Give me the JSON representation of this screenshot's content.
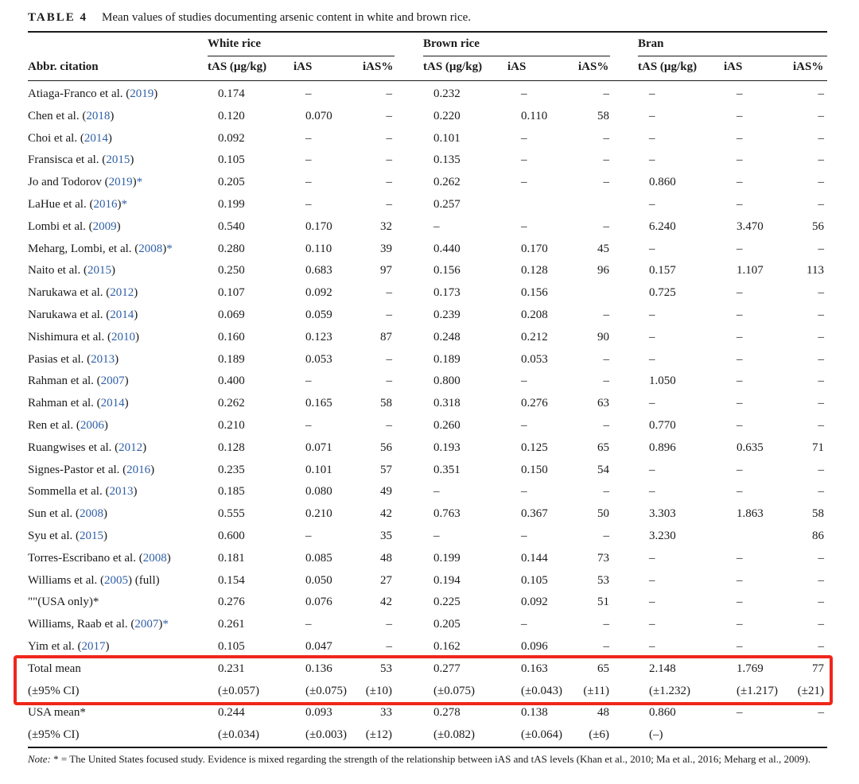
{
  "caption": {
    "label": "TABLE 4",
    "text": "Mean values of studies documenting arsenic content in white and brown rice."
  },
  "groups": [
    "White rice",
    "Brown rice",
    "Bran"
  ],
  "columns": [
    "Abbr. citation",
    "tAS (µg/kg)",
    "iAS",
    "iAS%",
    "tAS (µg/kg)",
    "iAS",
    "iAS%",
    "tAS (µg/kg)",
    "iAS",
    "iAS%"
  ],
  "rows": [
    {
      "name": "Atiaga-Franco et al. (",
      "year": "2019",
      "suffix": ")",
      "v": [
        "0.174",
        "–",
        "–",
        "0.232",
        "–",
        "–",
        "–",
        "–",
        "–"
      ]
    },
    {
      "name": "Chen et al. (",
      "year": "2018",
      "suffix": ")",
      "v": [
        "0.120",
        "0.070",
        "–",
        "0.220",
        "0.110",
        "58",
        "–",
        "–",
        "–"
      ]
    },
    {
      "name": "Choi et al. (",
      "year": "2014",
      "suffix": ")",
      "v": [
        "0.092",
        "–",
        "–",
        "0.101",
        "–",
        "–",
        "–",
        "–",
        "–"
      ]
    },
    {
      "name": "Fransisca et al. (",
      "year": "2015",
      "suffix": ")",
      "v": [
        "0.105",
        "–",
        "–",
        "0.135",
        "–",
        "–",
        "–",
        "–",
        "–"
      ]
    },
    {
      "name": "Jo and Todorov (",
      "year": "2019",
      "suffix": ")*",
      "v": [
        "0.205",
        "–",
        "–",
        "0.262",
        "–",
        "–",
        "0.860",
        "–",
        "–"
      ]
    },
    {
      "name": "LaHue et al. (",
      "year": "2016",
      "suffix": ")*",
      "v": [
        "0.199",
        "–",
        "–",
        "0.257",
        "",
        "",
        "–",
        "–",
        "–"
      ]
    },
    {
      "name": "Lombi et al. (",
      "year": "2009",
      "suffix": ")",
      "v": [
        "0.540",
        "0.170",
        "32",
        "–",
        "–",
        "–",
        "6.240",
        "3.470",
        "56"
      ]
    },
    {
      "name": "Meharg, Lombi, et al. (",
      "year": "2008",
      "suffix": ")*",
      "v": [
        "0.280",
        "0.110",
        "39",
        "0.440",
        "0.170",
        "45",
        "–",
        "–",
        "–"
      ]
    },
    {
      "name": "Naito et al. (",
      "year": "2015",
      "suffix": ")",
      "v": [
        "0.250",
        "0.683",
        "97",
        "0.156",
        "0.128",
        "96",
        "0.157",
        "1.107",
        "113"
      ]
    },
    {
      "name": "Narukawa et al. (",
      "year": "2012",
      "suffix": ")",
      "v": [
        "0.107",
        "0.092",
        "–",
        "0.173",
        "0.156",
        "",
        "0.725",
        "–",
        "–"
      ]
    },
    {
      "name": "Narukawa et al. (",
      "year": "2014",
      "suffix": ")",
      "v": [
        "0.069",
        "0.059",
        "–",
        "0.239",
        "0.208",
        "–",
        "–",
        "–",
        "–"
      ]
    },
    {
      "name": "Nishimura et al. (",
      "year": "2010",
      "suffix": ")",
      "v": [
        "0.160",
        "0.123",
        "87",
        "0.248",
        "0.212",
        "90",
        "–",
        "–",
        "–"
      ]
    },
    {
      "name": "Pasias et al. (",
      "year": "2013",
      "suffix": ")",
      "v": [
        "0.189",
        "0.053",
        "–",
        "0.189",
        "0.053",
        "–",
        "–",
        "–",
        "–"
      ]
    },
    {
      "name": "Rahman et al. (",
      "year": "2007",
      "suffix": ")",
      "v": [
        "0.400",
        "–",
        "–",
        "0.800",
        "–",
        "–",
        "1.050",
        "–",
        "–"
      ]
    },
    {
      "name": "Rahman et al. (",
      "year": "2014",
      "suffix": ")",
      "v": [
        "0.262",
        "0.165",
        "58",
        "0.318",
        "0.276",
        "63",
        "–",
        "–",
        "–"
      ]
    },
    {
      "name": "Ren et al. (",
      "year": "2006",
      "suffix": ")",
      "v": [
        "0.210",
        "–",
        "–",
        "0.260",
        "–",
        "–",
        "0.770",
        "–",
        "–"
      ]
    },
    {
      "name": "Ruangwises et al. (",
      "year": "2012",
      "suffix": ")",
      "v": [
        "0.128",
        "0.071",
        "56",
        "0.193",
        "0.125",
        "65",
        "0.896",
        "0.635",
        "71"
      ]
    },
    {
      "name": "Signes-Pastor et al. (",
      "year": "2016",
      "suffix": ")",
      "v": [
        "0.235",
        "0.101",
        "57",
        "0.351",
        "0.150",
        "54",
        "–",
        "–",
        "–"
      ]
    },
    {
      "name": "Sommella et al. (",
      "year": "2013",
      "suffix": ")",
      "v": [
        "0.185",
        "0.080",
        "49",
        "–",
        "–",
        "–",
        "–",
        "–",
        "–"
      ]
    },
    {
      "name": "Sun et al. (",
      "year": "2008",
      "suffix": ")",
      "v": [
        "0.555",
        "0.210",
        "42",
        "0.763",
        "0.367",
        "50",
        "3.303",
        "1.863",
        "58"
      ]
    },
    {
      "name": "Syu et al. (",
      "year": "2015",
      "suffix": ")",
      "v": [
        "0.600",
        "–",
        "35",
        "–",
        "–",
        "–",
        "3.230",
        "",
        "86"
      ]
    },
    {
      "name": "Torres-Escribano et al. (",
      "year": "2008",
      "suffix": ")",
      "v": [
        "0.181",
        "0.085",
        "48",
        "0.199",
        "0.144",
        "73",
        "–",
        "–",
        "–"
      ]
    },
    {
      "name": "Williams et al. (",
      "year": "2005",
      "suffix": ") (full)",
      "v": [
        "0.154",
        "0.050",
        "27",
        "0.194",
        "0.105",
        "53",
        "–",
        "–",
        "–"
      ]
    },
    {
      "name": "\"\"(USA only)*",
      "year": "",
      "suffix": "",
      "v": [
        "0.276",
        "0.076",
        "42",
        "0.225",
        "0.092",
        "51",
        "–",
        "–",
        "–"
      ]
    },
    {
      "name": "Williams, Raab et al. (",
      "year": "2007",
      "suffix": ")*",
      "v": [
        "0.261",
        "–",
        "–",
        "0.205",
        "–",
        "–",
        "–",
        "–",
        "–"
      ]
    },
    {
      "name": "Yim et al. (",
      "year": "2017",
      "suffix": ")",
      "v": [
        "0.105",
        "0.047",
        "–",
        "0.162",
        "0.096",
        "–",
        "–",
        "–",
        "–"
      ]
    },
    {
      "name": "Total mean",
      "year": "",
      "suffix": "",
      "v": [
        "0.231",
        "0.136",
        "53",
        "0.277",
        "0.163",
        "65",
        "2.148",
        "1.769",
        "77"
      ]
    },
    {
      "name": "(±95% CI)",
      "year": "",
      "suffix": "",
      "v": [
        "(±0.057)",
        "(±0.075)",
        "(±10)",
        "(±0.075)",
        "(±0.043)",
        "(±11)",
        "(±1.232)",
        "(±1.217)",
        "(±21)"
      ]
    },
    {
      "name": "USA mean*",
      "year": "",
      "suffix": "",
      "v": [
        "0.244",
        "0.093",
        "33",
        "0.278",
        "0.138",
        "48",
        "0.860",
        "–",
        "–"
      ]
    },
    {
      "name": "(±95% CI)",
      "year": "",
      "suffix": "",
      "v": [
        "(±0.034)",
        "(±0.003)",
        "(±12)",
        "(±0.082)",
        "(±0.064)",
        "(±6)",
        "(–)",
        "",
        ""
      ]
    }
  ],
  "note": {
    "label": "Note:",
    "text": "* = The United States focused study. Evidence is mixed regarding the strength of the relationship between iAS and tAS levels (Khan et al., 2010; Ma et al., 2016; Meharg et al., 2009)."
  },
  "colors": {
    "highlight": "#f0261b",
    "link": "#2f5fa7",
    "text": "#1a1a1a"
  }
}
